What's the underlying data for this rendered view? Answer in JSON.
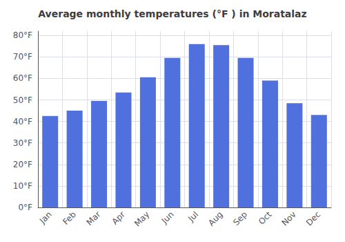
{
  "chart_data": {
    "type": "bar",
    "title": "Average monthly temperatures (°F ) in Moratalaz",
    "categories": [
      "Jan",
      "Feb",
      "Mar",
      "Apr",
      "May",
      "Jun",
      "Jul",
      "Aug",
      "Sep",
      "Oct",
      "Nov",
      "Dec"
    ],
    "values": [
      42.5,
      45.0,
      49.5,
      53.5,
      60.5,
      69.5,
      76.0,
      75.5,
      69.5,
      59.0,
      48.5,
      43.0
    ],
    "ylim": [
      0,
      82
    ],
    "yticks": [
      {
        "value": 0,
        "label": "0°F"
      },
      {
        "value": 10,
        "label": "10°F"
      },
      {
        "value": 20,
        "label": "20°F"
      },
      {
        "value": 30,
        "label": "30°F"
      },
      {
        "value": 40,
        "label": "40°F"
      },
      {
        "value": 50,
        "label": "50°F"
      },
      {
        "value": 60,
        "label": "60°F"
      },
      {
        "value": 70,
        "label": "70°F"
      },
      {
        "value": 80,
        "label": "80°F"
      }
    ],
    "grid": true
  }
}
